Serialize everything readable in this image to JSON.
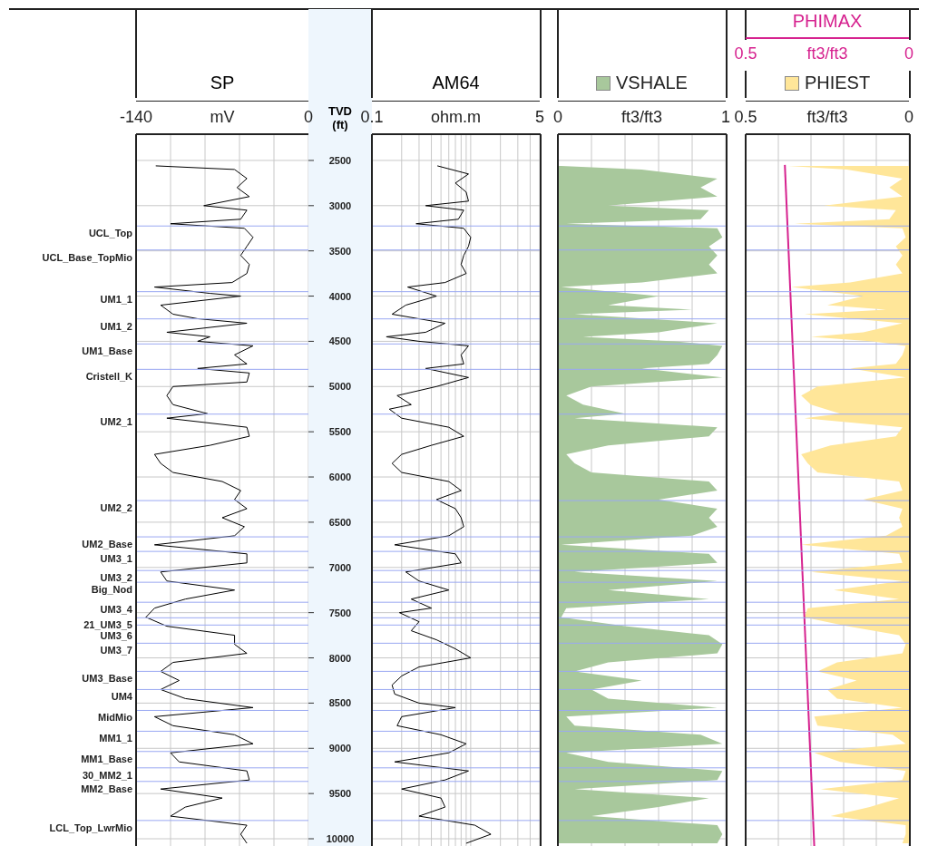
{
  "chart_data": [
    {
      "type": "line",
      "orientation": "horizontal",
      "xlabel": "mV",
      "xlim": [
        -140,
        0
      ],
      "xticks": [
        -140,
        {
          "value": -112,
          "label": null
        },
        {
          "value": -84,
          "label": null
        },
        {
          "value": -56,
          "label": null
        },
        {
          "value": -28,
          "label": null
        },
        0
      ],
      "ylim": [
        10080,
        2210
      ],
      "yticks": [
        2500,
        3000,
        3500,
        4000,
        4500,
        5000,
        5500,
        6000,
        6500,
        7000,
        7500,
        8000,
        8500,
        9000,
        9500,
        10000
      ],
      "tick_labels": "x",
      "grid": true,
      "series": [
        {
          "name": "SP",
          "color": "#000000",
          "x": [
            2560,
            2600,
            2700,
            2800,
            2900,
            3000,
            3050,
            3150,
            3200,
            3250,
            3350,
            3450,
            3550,
            3650,
            3750,
            3850,
            3900,
            3970,
            4000,
            4100,
            4200,
            4250,
            4300,
            4400,
            4450,
            4500,
            4550,
            4650,
            4750,
            4800,
            4850,
            4950,
            5000,
            5100,
            5200,
            5300,
            5350,
            5450,
            5550,
            5650,
            5750,
            5850,
            5950,
            6050,
            6150,
            6250,
            6350,
            6450,
            6550,
            6650,
            6750,
            6850,
            6950,
            7050,
            7150,
            7250,
            7350,
            7450,
            7550,
            7650,
            7750,
            7850,
            7950,
            8050,
            8150,
            8250,
            8350,
            8450,
            8550,
            8650,
            8750,
            8850,
            8950,
            9050,
            9150,
            9250,
            9350,
            9450,
            9550,
            9650,
            9750,
            9850,
            9950,
            10050
          ],
          "values": [
            -124,
            -60,
            -50,
            -58,
            -48,
            -85,
            -50,
            -55,
            -112,
            -52,
            -45,
            -50,
            -55,
            -48,
            -50,
            -62,
            -125,
            -80,
            -55,
            -120,
            -110,
            -90,
            -50,
            -115,
            -80,
            -90,
            -45,
            -60,
            -50,
            -90,
            -48,
            -50,
            -110,
            -115,
            -110,
            -82,
            -115,
            -50,
            -48,
            -80,
            -125,
            -120,
            -110,
            -70,
            -55,
            -60,
            -50,
            -70,
            -52,
            -60,
            -125,
            -50,
            -50,
            -120,
            -115,
            -60,
            -100,
            -125,
            -132,
            -115,
            -60,
            -60,
            -50,
            -110,
            -120,
            -105,
            -120,
            -100,
            -45,
            -125,
            -110,
            -60,
            -45,
            -112,
            -105,
            -50,
            -48,
            -120,
            -70,
            -100,
            -112,
            -50,
            -55,
            -50
          ]
        }
      ],
      "ref_lines": [
        {
          "axis": "y",
          "value": 3225,
          "label": "UCL_Top",
          "color": "#9aa8f2"
        },
        {
          "axis": "y",
          "value": 3490,
          "label": "UCL_Base_TopMio",
          "color": "#9aa8f2"
        },
        {
          "axis": "y",
          "value": 3951,
          "label": "UM1_1",
          "color": "#9aa8f2"
        },
        {
          "axis": "y",
          "value": 4252,
          "label": "UM1_2",
          "color": "#9aa8f2"
        },
        {
          "axis": "y",
          "value": 4529,
          "label": "UM1_Base",
          "color": "#9aa8f2"
        },
        {
          "axis": "y",
          "value": 4810,
          "label": "Cristell_K",
          "color": "#9aa8f2"
        },
        {
          "axis": "y",
          "value": 5305,
          "label": "UM2_1",
          "color": "#9aa8f2"
        },
        {
          "axis": "y",
          "value": 6261,
          "label": "UM2_2",
          "color": "#9aa8f2"
        },
        {
          "axis": "y",
          "value": 6662,
          "label": "UM2_Base",
          "color": "#9aa8f2"
        },
        {
          "axis": "y",
          "value": 6823,
          "label": "UM3_1",
          "color": "#9aa8f2"
        },
        {
          "axis": "y",
          "value": 7034,
          "label": "UM3_2",
          "color": "#9aa8f2"
        },
        {
          "axis": "y",
          "value": 7164,
          "label": "Big_Nod",
          "color": "#9aa8f2"
        },
        {
          "axis": "y",
          "value": 7385,
          "label": "UM3_4",
          "color": "#9aa8f2"
        },
        {
          "axis": "y",
          "value": 7557,
          "label": "21_UM3_5",
          "color": "#9aa8f2"
        },
        {
          "axis": "y",
          "value": 7637,
          "label": "UM3_6",
          "color": "#9aa8f2"
        },
        {
          "axis": "y",
          "value": 7838,
          "label": "UM3_7",
          "color": "#9aa8f2"
        },
        {
          "axis": "y",
          "value": 8149,
          "label": "UM3_Base",
          "color": "#9aa8f2"
        },
        {
          "axis": "y",
          "value": 8350,
          "label": "UM4",
          "color": "#9aa8f2"
        },
        {
          "axis": "y",
          "value": 8581,
          "label": "MidMio",
          "color": "#9aa8f2"
        },
        {
          "axis": "y",
          "value": 8811,
          "label": "MM1_1",
          "color": "#9aa8f2"
        },
        {
          "axis": "y",
          "value": 9035,
          "label": "MM1_Base",
          "color": "#9aa8f2"
        },
        {
          "axis": "y",
          "value": 9216,
          "label": "30_MM2_1",
          "color": "#9aa8f2"
        },
        {
          "axis": "y",
          "value": 9366,
          "label": "MM2_Base",
          "color": "#9aa8f2"
        },
        {
          "axis": "y",
          "value": 9798,
          "label": "LCL_Top_LwrMio",
          "color": "#9aa8f2"
        }
      ]
    },
    {
      "type": "line",
      "orientation": "horizontal",
      "log": "x",
      "xlabel": "ohm.m",
      "ylabel": "TVD (ft)",
      "xlim": [
        0.1,
        5
      ],
      "xticks": [
        0.1,
        {
          "value": 0.2,
          "label": null
        },
        {
          "value": 0.3,
          "label": null
        },
        {
          "value": 0.4,
          "label": null
        },
        {
          "value": 0.5,
          "label": null
        },
        {
          "value": 0.6,
          "label": null
        },
        {
          "value": 0.7,
          "label": null
        },
        {
          "value": 0.8,
          "label": null
        },
        {
          "value": 0.9,
          "label": null
        },
        {
          "value": 1,
          "label": null
        },
        {
          "value": 2,
          "label": null
        },
        {
          "value": 3,
          "label": null
        },
        {
          "value": 4,
          "label": null
        },
        5
      ],
      "ylim": [
        10080,
        2210
      ],
      "yticks": [
        2500,
        3000,
        3500,
        4000,
        4500,
        5000,
        5500,
        6000,
        6500,
        7000,
        7500,
        8000,
        8500,
        9000,
        9500,
        10000
      ],
      "grid": true,
      "series": [
        {
          "name": "AM64",
          "color": "#000000",
          "x": [
            2560,
            2650,
            2750,
            2850,
            2950,
            3000,
            3050,
            3150,
            3200,
            3250,
            3350,
            3450,
            3550,
            3650,
            3750,
            3850,
            3900,
            4000,
            4100,
            4200,
            4300,
            4400,
            4450,
            4500,
            4550,
            4650,
            4750,
            4800,
            4900,
            5000,
            5100,
            5200,
            5250,
            5350,
            5450,
            5550,
            5650,
            5750,
            5850,
            5950,
            6050,
            6150,
            6250,
            6350,
            6450,
            6550,
            6650,
            6750,
            6850,
            6950,
            7050,
            7150,
            7250,
            7350,
            7450,
            7500,
            7600,
            7700,
            7800,
            7900,
            8000,
            8100,
            8200,
            8300,
            8400,
            8500,
            8550,
            8650,
            8750,
            8850,
            8950,
            9050,
            9150,
            9250,
            9350,
            9450,
            9550,
            9650,
            9750,
            9850,
            9950,
            10050
          ],
          "values": [
            0.46,
            0.95,
            0.7,
            0.9,
            0.95,
            0.35,
            0.85,
            0.75,
            0.28,
            0.85,
            1.0,
            0.95,
            0.85,
            0.8,
            0.9,
            0.55,
            0.23,
            0.45,
            0.22,
            0.16,
            0.55,
            0.35,
            0.14,
            0.3,
            0.95,
            0.8,
            0.85,
            0.35,
            0.95,
            0.45,
            0.18,
            0.25,
            0.15,
            0.2,
            0.6,
            0.85,
            0.4,
            0.2,
            0.16,
            0.2,
            0.6,
            0.8,
            0.45,
            0.7,
            0.8,
            0.85,
            0.6,
            0.17,
            0.7,
            0.8,
            0.22,
            0.3,
            0.6,
            0.25,
            0.4,
            0.19,
            0.3,
            0.25,
            0.45,
            0.7,
            1.0,
            0.3,
            0.2,
            0.16,
            0.17,
            0.3,
            0.7,
            0.2,
            0.18,
            0.5,
            0.9,
            0.6,
            0.17,
            0.95,
            0.55,
            0.2,
            0.5,
            0.55,
            0.3,
            1.1,
            1.6,
            0.9
          ]
        }
      ],
      "ref_lines": [
        {
          "axis": "y",
          "value": 3225,
          "color": "#9aa8f2"
        },
        {
          "axis": "y",
          "value": 3490,
          "color": "#9aa8f2"
        },
        {
          "axis": "y",
          "value": 3951,
          "color": "#9aa8f2"
        },
        {
          "axis": "y",
          "value": 4252,
          "color": "#9aa8f2"
        },
        {
          "axis": "y",
          "value": 4529,
          "color": "#9aa8f2"
        },
        {
          "axis": "y",
          "value": 4810,
          "color": "#9aa8f2"
        },
        {
          "axis": "y",
          "value": 5305,
          "color": "#9aa8f2"
        },
        {
          "axis": "y",
          "value": 6261,
          "color": "#9aa8f2"
        },
        {
          "axis": "y",
          "value": 6662,
          "color": "#9aa8f2"
        },
        {
          "axis": "y",
          "value": 6823,
          "color": "#9aa8f2"
        },
        {
          "axis": "y",
          "value": 7034,
          "color": "#9aa8f2"
        },
        {
          "axis": "y",
          "value": 7164,
          "color": "#9aa8f2"
        },
        {
          "axis": "y",
          "value": 7385,
          "color": "#9aa8f2"
        },
        {
          "axis": "y",
          "value": 7557,
          "color": "#9aa8f2"
        },
        {
          "axis": "y",
          "value": 7637,
          "color": "#9aa8f2"
        },
        {
          "axis": "y",
          "value": 7838,
          "color": "#9aa8f2"
        },
        {
          "axis": "y",
          "value": 8149,
          "color": "#9aa8f2"
        },
        {
          "axis": "y",
          "value": 8350,
          "color": "#9aa8f2"
        },
        {
          "axis": "y",
          "value": 8581,
          "color": "#9aa8f2"
        },
        {
          "axis": "y",
          "value": 8811,
          "color": "#9aa8f2"
        },
        {
          "axis": "y",
          "value": 9035,
          "color": "#9aa8f2"
        },
        {
          "axis": "y",
          "value": 9216,
          "color": "#9aa8f2"
        },
        {
          "axis": "y",
          "value": 9366,
          "color": "#9aa8f2"
        },
        {
          "axis": "y",
          "value": 9798,
          "color": "#9aa8f2"
        }
      ]
    },
    {
      "type": "area",
      "orientation": "horizontal",
      "xlabel": "ft3/ft3",
      "xlim": [
        0,
        1
      ],
      "xticks": [
        0,
        {
          "value": 0.2,
          "label": null
        },
        {
          "value": 0.4,
          "label": null
        },
        {
          "value": 0.6,
          "label": null
        },
        {
          "value": 0.8,
          "label": null
        },
        1
      ],
      "ylim": [
        10080,
        2210
      ],
      "yticks": [
        2500,
        3000,
        3500,
        4000,
        4500,
        5000,
        5500,
        6000,
        6500,
        7000,
        7500,
        8000,
        8500,
        9000,
        9500,
        10000
      ],
      "tick_labels": "x",
      "grid": true,
      "series": [
        {
          "name": "VSHALE",
          "color": "#a8c89c",
          "x": [
            2560,
            2600,
            2700,
            2800,
            2900,
            3000,
            3050,
            3150,
            3200,
            3250,
            3350,
            3450,
            3550,
            3650,
            3750,
            3850,
            3900,
            4000,
            4100,
            4150,
            4200,
            4300,
            4400,
            4450,
            4500,
            4550,
            4650,
            4750,
            4800,
            4900,
            5000,
            5100,
            5200,
            5300,
            5350,
            5450,
            5550,
            5650,
            5750,
            5850,
            5950,
            6050,
            6150,
            6250,
            6350,
            6450,
            6550,
            6650,
            6750,
            6850,
            6950,
            7050,
            7150,
            7250,
            7350,
            7450,
            7550,
            7650,
            7750,
            7850,
            7950,
            8050,
            8150,
            8250,
            8350,
            8450,
            8550,
            8650,
            8750,
            8850,
            8950,
            9050,
            9150,
            9250,
            9350,
            9450,
            9550,
            9650,
            9750,
            9850,
            9950,
            10050
          ],
          "values": [
            0.02,
            0.5,
            0.95,
            0.85,
            0.95,
            0.3,
            0.9,
            0.85,
            0.05,
            0.95,
            0.98,
            0.9,
            0.95,
            0.9,
            0.95,
            0.5,
            0.02,
            0.6,
            0.3,
            0.8,
            0.1,
            0.95,
            0.6,
            0.15,
            0.7,
            0.98,
            0.95,
            0.9,
            0.5,
            0.98,
            0.2,
            0.05,
            0.15,
            0.4,
            0.1,
            0.95,
            0.9,
            0.3,
            0.05,
            0.1,
            0.2,
            0.9,
            0.95,
            0.6,
            0.95,
            0.9,
            0.95,
            0.8,
            0.02,
            0.9,
            0.95,
            0.1,
            0.95,
            0.3,
            0.9,
            0.05,
            0.02,
            0.4,
            0.9,
            0.98,
            0.95,
            0.3,
            0.1,
            0.5,
            0.2,
            0.3,
            0.95,
            0.05,
            0.1,
            0.85,
            0.98,
            0.05,
            0.3,
            0.98,
            0.95,
            0.1,
            0.9,
            0.6,
            0.2,
            0.95,
            0.98,
            0.95
          ]
        }
      ],
      "ref_lines": [
        {
          "axis": "y",
          "value": 3225,
          "color": "#9aa8f2"
        },
        {
          "axis": "y",
          "value": 3490,
          "color": "#9aa8f2"
        },
        {
          "axis": "y",
          "value": 3951,
          "color": "#9aa8f2"
        },
        {
          "axis": "y",
          "value": 4252,
          "color": "#9aa8f2"
        },
        {
          "axis": "y",
          "value": 4529,
          "color": "#9aa8f2"
        },
        {
          "axis": "y",
          "value": 4810,
          "color": "#9aa8f2"
        },
        {
          "axis": "y",
          "value": 5305,
          "color": "#9aa8f2"
        },
        {
          "axis": "y",
          "value": 6261,
          "color": "#9aa8f2"
        },
        {
          "axis": "y",
          "value": 6662,
          "color": "#9aa8f2"
        },
        {
          "axis": "y",
          "value": 6823,
          "color": "#9aa8f2"
        },
        {
          "axis": "y",
          "value": 7034,
          "color": "#9aa8f2"
        },
        {
          "axis": "y",
          "value": 7164,
          "color": "#9aa8f2"
        },
        {
          "axis": "y",
          "value": 7385,
          "color": "#9aa8f2"
        },
        {
          "axis": "y",
          "value": 7557,
          "color": "#9aa8f2"
        },
        {
          "axis": "y",
          "value": 7637,
          "color": "#9aa8f2"
        },
        {
          "axis": "y",
          "value": 7838,
          "color": "#9aa8f2"
        },
        {
          "axis": "y",
          "value": 8149,
          "color": "#9aa8f2"
        },
        {
          "axis": "y",
          "value": 8350,
          "color": "#9aa8f2"
        },
        {
          "axis": "y",
          "value": 8581,
          "color": "#9aa8f2"
        },
        {
          "axis": "y",
          "value": 8811,
          "color": "#9aa8f2"
        },
        {
          "axis": "y",
          "value": 9035,
          "color": "#9aa8f2"
        },
        {
          "axis": "y",
          "value": 9216,
          "color": "#9aa8f2"
        },
        {
          "axis": "y",
          "value": 9366,
          "color": "#9aa8f2"
        },
        {
          "axis": "y",
          "value": 9798,
          "color": "#9aa8f2"
        }
      ]
    },
    {
      "type": "area",
      "orientation": "horizontal",
      "xlabel": "ft3/ft3",
      "xlim": [
        0.5,
        0
      ],
      "xticks": [
        0.5,
        {
          "value": 0.4,
          "label": null
        },
        {
          "value": 0.3,
          "label": null
        },
        {
          "value": 0.2,
          "label": null
        },
        {
          "value": 0.1,
          "label": null
        },
        0
      ],
      "x2label": "ft3/ft3",
      "x2lim": [
        0.5,
        0
      ],
      "x2ticks": [
        0.5,
        0
      ],
      "ylim": [
        10080,
        2210
      ],
      "yticks": [
        2500,
        3000,
        3500,
        4000,
        4500,
        5000,
        5500,
        6000,
        6500,
        7000,
        7500,
        8000,
        8500,
        9000,
        9500,
        10000
      ],
      "tick_labels": "x",
      "grid": true,
      "series": [
        {
          "name": "PHIEST",
          "color": "#ffe699",
          "x": [
            2560,
            2600,
            2700,
            2800,
            2900,
            3000,
            3050,
            3150,
            3200,
            3250,
            3350,
            3450,
            3550,
            3650,
            3750,
            3850,
            3900,
            4000,
            4100,
            4150,
            4200,
            4300,
            4400,
            4450,
            4500,
            4550,
            4650,
            4750,
            4800,
            4900,
            5000,
            5100,
            5200,
            5300,
            5350,
            5450,
            5550,
            5650,
            5750,
            5850,
            5950,
            6050,
            6150,
            6250,
            6350,
            6450,
            6550,
            6650,
            6750,
            6850,
            6950,
            7050,
            7150,
            7250,
            7350,
            7450,
            7550,
            7650,
            7750,
            7850,
            7950,
            8050,
            8150,
            8250,
            8350,
            8450,
            8550,
            8650,
            8750,
            8850,
            8950,
            9050,
            9150,
            9250,
            9350,
            9450,
            9550,
            9650,
            9750,
            9850,
            9950,
            10050
          ],
          "values": [
            0.37,
            0.19,
            0.02,
            0.06,
            0.02,
            0.26,
            0.04,
            0.06,
            0.35,
            0.02,
            0.01,
            0.04,
            0.02,
            0.04,
            0.02,
            0.18,
            0.36,
            0.14,
            0.25,
            0.07,
            0.32,
            0.02,
            0.14,
            0.3,
            0.11,
            0.01,
            0.02,
            0.04,
            0.18,
            0.01,
            0.28,
            0.33,
            0.3,
            0.21,
            0.32,
            0.02,
            0.04,
            0.24,
            0.33,
            0.31,
            0.28,
            0.03,
            0.02,
            0.14,
            0.02,
            0.03,
            0.02,
            0.07,
            0.33,
            0.03,
            0.02,
            0.3,
            0.02,
            0.23,
            0.03,
            0.31,
            0.32,
            0.19,
            0.03,
            0.01,
            0.02,
            0.22,
            0.28,
            0.16,
            0.25,
            0.22,
            0.02,
            0.29,
            0.28,
            0.05,
            0.01,
            0.29,
            0.21,
            0.01,
            0.02,
            0.27,
            0.03,
            0.12,
            0.24,
            0.01,
            0.01,
            0.02
          ]
        },
        {
          "name": "PHIMAX",
          "type": "line",
          "axis": "x2",
          "color": "#d6228f",
          "x": [
            2550,
            10080
          ],
          "values": [
            0.38,
            0.29
          ]
        }
      ],
      "ref_lines": [
        {
          "axis": "y",
          "value": 3225,
          "color": "#9aa8f2"
        },
        {
          "axis": "y",
          "value": 3490,
          "color": "#9aa8f2"
        },
        {
          "axis": "y",
          "value": 3951,
          "color": "#9aa8f2"
        },
        {
          "axis": "y",
          "value": 4252,
          "color": "#9aa8f2"
        },
        {
          "axis": "y",
          "value": 4529,
          "color": "#9aa8f2"
        },
        {
          "axis": "y",
          "value": 4810,
          "color": "#9aa8f2"
        },
        {
          "axis": "y",
          "value": 5305,
          "color": "#9aa8f2"
        },
        {
          "axis": "y",
          "value": 6261,
          "color": "#9aa8f2"
        },
        {
          "axis": "y",
          "value": 6662,
          "color": "#9aa8f2"
        },
        {
          "axis": "y",
          "value": 6823,
          "color": "#9aa8f2"
        },
        {
          "axis": "y",
          "value": 7034,
          "color": "#9aa8f2"
        },
        {
          "axis": "y",
          "value": 7164,
          "color": "#9aa8f2"
        },
        {
          "axis": "y",
          "value": 7385,
          "color": "#9aa8f2"
        },
        {
          "axis": "y",
          "value": 7557,
          "color": "#9aa8f2"
        },
        {
          "axis": "y",
          "value": 7637,
          "color": "#9aa8f2"
        },
        {
          "axis": "y",
          "value": 7838,
          "color": "#9aa8f2"
        },
        {
          "axis": "y",
          "value": 8149,
          "color": "#9aa8f2"
        },
        {
          "axis": "y",
          "value": 8350,
          "color": "#9aa8f2"
        },
        {
          "axis": "y",
          "value": 8581,
          "color": "#9aa8f2"
        },
        {
          "axis": "y",
          "value": 8811,
          "color": "#9aa8f2"
        },
        {
          "axis": "y",
          "value": 9035,
          "color": "#9aa8f2"
        },
        {
          "axis": "y",
          "value": 9216,
          "color": "#9aa8f2"
        },
        {
          "axis": "y",
          "value": 9366,
          "color": "#9aa8f2"
        },
        {
          "axis": "y",
          "value": 9798,
          "color": "#9aa8f2"
        }
      ]
    }
  ]
}
